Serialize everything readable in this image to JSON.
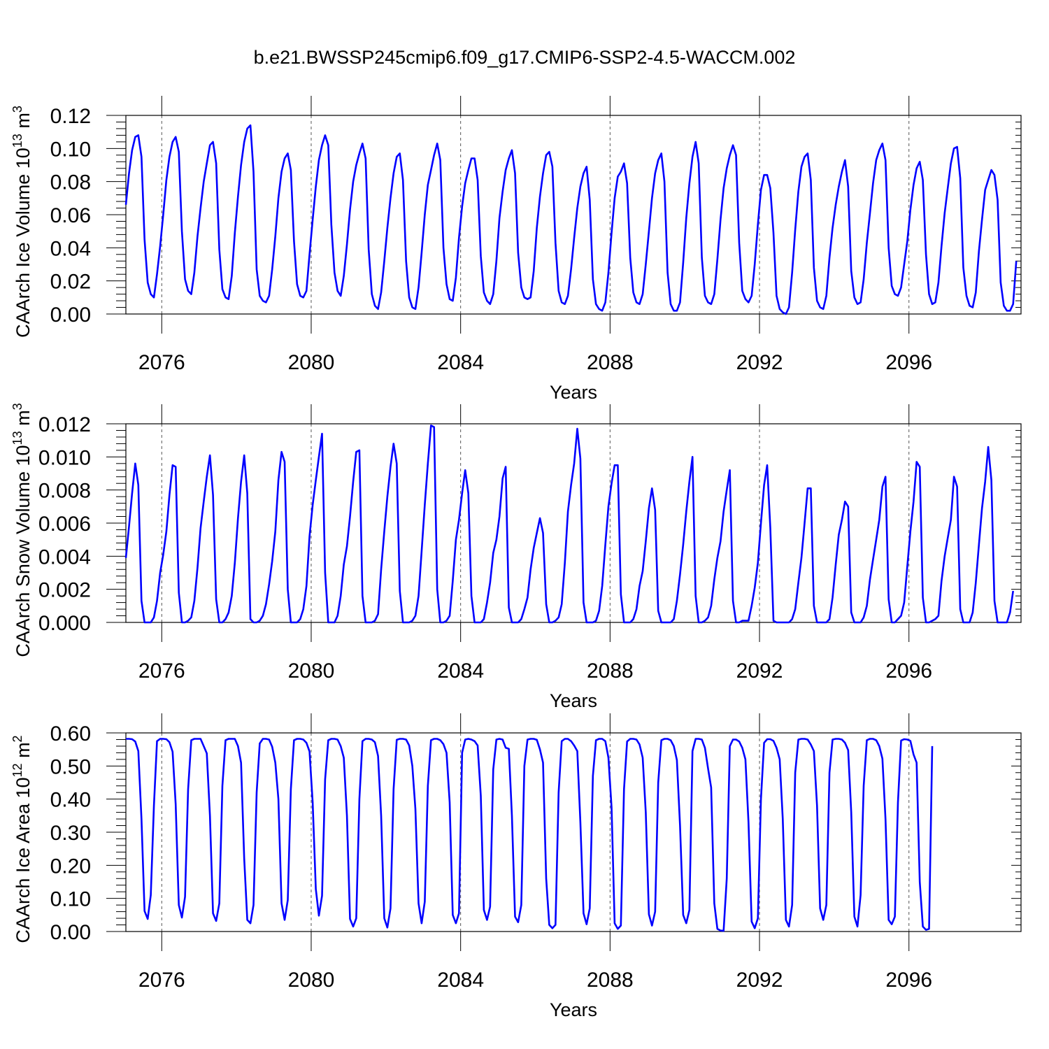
{
  "figure": {
    "title": "b.e21.BWSSP245cmip6.f09_g17.CMIP6-SSP2-4.5-WACCM.002",
    "series_color": "#0000ff"
  },
  "chart_data": [
    {
      "type": "line",
      "ylabel": "CAArch Ice Volume 10",
      "ylabel_exp": "13",
      "ylabel_unit": " m",
      "ylabel_unit_exp": "3",
      "xlabel": "Years",
      "xlim": [
        2075.04,
        2099.0
      ],
      "ylim": [
        0,
        0.12
      ],
      "x_ticks": [
        2076,
        2080,
        2084,
        2088,
        2092,
        2096
      ],
      "x_tick_labels": [
        "2076",
        "2080",
        "2084",
        "2088",
        "2092",
        "2096"
      ],
      "y_ticks": [
        0,
        0.02,
        0.04,
        0.06,
        0.08,
        0.1,
        0.12
      ],
      "y_tick_labels": [
        "0.00",
        "0.02",
        "0.04",
        "0.06",
        "0.08",
        "0.10",
        "0.12"
      ],
      "grid": "vertical dashed at labeled years",
      "x_start": 2075.04,
      "x_step": 0.08333,
      "values": [
        0.066,
        0.085,
        0.099,
        0.107,
        0.108,
        0.095,
        0.045,
        0.019,
        0.012,
        0.01,
        0.024,
        0.041,
        0.06,
        0.081,
        0.095,
        0.104,
        0.107,
        0.098,
        0.05,
        0.021,
        0.014,
        0.012,
        0.025,
        0.047,
        0.064,
        0.08,
        0.091,
        0.102,
        0.104,
        0.091,
        0.039,
        0.015,
        0.01,
        0.009,
        0.023,
        0.049,
        0.071,
        0.09,
        0.104,
        0.112,
        0.114,
        0.086,
        0.027,
        0.011,
        0.008,
        0.007,
        0.011,
        0.027,
        0.047,
        0.07,
        0.086,
        0.094,
        0.097,
        0.087,
        0.044,
        0.018,
        0.011,
        0.01,
        0.014,
        0.036,
        0.057,
        0.077,
        0.093,
        0.102,
        0.108,
        0.102,
        0.054,
        0.025,
        0.014,
        0.011,
        0.023,
        0.042,
        0.063,
        0.08,
        0.09,
        0.097,
        0.103,
        0.094,
        0.039,
        0.012,
        0.005,
        0.003,
        0.013,
        0.032,
        0.052,
        0.07,
        0.085,
        0.095,
        0.097,
        0.081,
        0.032,
        0.01,
        0.004,
        0.003,
        0.016,
        0.037,
        0.06,
        0.078,
        0.087,
        0.096,
        0.103,
        0.093,
        0.04,
        0.018,
        0.009,
        0.008,
        0.022,
        0.046,
        0.065,
        0.079,
        0.087,
        0.094,
        0.094,
        0.081,
        0.035,
        0.013,
        0.008,
        0.006,
        0.012,
        0.032,
        0.058,
        0.074,
        0.087,
        0.094,
        0.099,
        0.085,
        0.037,
        0.016,
        0.01,
        0.009,
        0.01,
        0.026,
        0.052,
        0.071,
        0.085,
        0.096,
        0.098,
        0.089,
        0.043,
        0.014,
        0.007,
        0.006,
        0.011,
        0.027,
        0.046,
        0.064,
        0.077,
        0.085,
        0.089,
        0.069,
        0.021,
        0.006,
        0.003,
        0.002,
        0.007,
        0.025,
        0.049,
        0.07,
        0.083,
        0.086,
        0.091,
        0.079,
        0.034,
        0.013,
        0.007,
        0.006,
        0.012,
        0.03,
        0.05,
        0.07,
        0.085,
        0.093,
        0.097,
        0.08,
        0.025,
        0.006,
        0.002,
        0.002,
        0.007,
        0.031,
        0.058,
        0.079,
        0.095,
        0.104,
        0.091,
        0.034,
        0.011,
        0.007,
        0.006,
        0.012,
        0.033,
        0.057,
        0.076,
        0.088,
        0.096,
        0.102,
        0.096,
        0.043,
        0.014,
        0.009,
        0.007,
        0.011,
        0.03,
        0.054,
        0.075,
        0.084,
        0.084,
        0.076,
        0.049,
        0.011,
        0.003,
        0.001,
        0.0,
        0.004,
        0.025,
        0.051,
        0.074,
        0.089,
        0.095,
        0.097,
        0.081,
        0.028,
        0.008,
        0.004,
        0.003,
        0.011,
        0.034,
        0.052,
        0.066,
        0.077,
        0.086,
        0.093,
        0.077,
        0.026,
        0.01,
        0.006,
        0.007,
        0.021,
        0.043,
        0.061,
        0.079,
        0.093,
        0.099,
        0.103,
        0.093,
        0.04,
        0.017,
        0.012,
        0.011,
        0.016,
        0.03,
        0.044,
        0.063,
        0.078,
        0.088,
        0.092,
        0.081,
        0.036,
        0.012,
        0.006,
        0.007,
        0.019,
        0.041,
        0.061,
        0.076,
        0.091,
        0.1,
        0.101,
        0.082,
        0.028,
        0.011,
        0.005,
        0.004,
        0.013,
        0.038,
        0.057,
        0.075,
        0.081,
        0.087,
        0.084,
        0.069,
        0.019,
        0.005,
        0.002,
        0.002,
        0.006,
        0.032
      ]
    },
    {
      "type": "line",
      "ylabel": "CAArch Snow Volume 10",
      "ylabel_exp": "13",
      "ylabel_unit": " m",
      "ylabel_unit_exp": "3",
      "xlabel": "Years",
      "xlim": [
        2075.04,
        2099.0
      ],
      "ylim": [
        0,
        0.012
      ],
      "x_ticks": [
        2076,
        2080,
        2084,
        2088,
        2092,
        2096
      ],
      "x_tick_labels": [
        "2076",
        "2080",
        "2084",
        "2088",
        "2092",
        "2096"
      ],
      "y_ticks": [
        0,
        0.002,
        0.004,
        0.006,
        0.008,
        0.01,
        0.012
      ],
      "y_tick_labels": [
        "0.000",
        "0.002",
        "0.004",
        "0.006",
        "0.008",
        "0.010",
        "0.012"
      ],
      "grid": "vertical dashed at labeled years",
      "x_start": 2075.04,
      "x_step": 0.08333,
      "values": [
        0.0039,
        0.0058,
        0.0078,
        0.0096,
        0.0083,
        0.0013,
        0.0,
        0.0,
        0.0,
        0.0003,
        0.0013,
        0.003,
        0.0041,
        0.0055,
        0.0077,
        0.0095,
        0.0094,
        0.0018,
        0.0,
        0.0,
        0.0001,
        0.0003,
        0.0013,
        0.0033,
        0.0057,
        0.0073,
        0.0088,
        0.0101,
        0.0077,
        0.0014,
        0.0,
        0.0,
        0.0002,
        0.0006,
        0.0016,
        0.0036,
        0.0063,
        0.0085,
        0.0101,
        0.0078,
        0.0002,
        0.0,
        0.0,
        0.0001,
        0.0004,
        0.0011,
        0.0023,
        0.0037,
        0.0055,
        0.0086,
        0.0103,
        0.0097,
        0.002,
        0.0,
        0.0,
        0.0,
        0.0002,
        0.0008,
        0.0022,
        0.0052,
        0.0071,
        0.0086,
        0.01,
        0.0114,
        0.003,
        0.0,
        0.0,
        0.0,
        0.0004,
        0.0016,
        0.0035,
        0.0046,
        0.0064,
        0.0085,
        0.0103,
        0.0104,
        0.0016,
        0.0,
        0.0,
        0.0,
        0.0001,
        0.0005,
        0.0032,
        0.0055,
        0.0076,
        0.0094,
        0.0108,
        0.0096,
        0.0019,
        0.0,
        0.0,
        0.0,
        0.0001,
        0.0004,
        0.0016,
        0.0043,
        0.0071,
        0.0096,
        0.0119,
        0.0118,
        0.002,
        0.0,
        0.0,
        0.0001,
        0.0004,
        0.0025,
        0.005,
        0.0062,
        0.0078,
        0.0092,
        0.0078,
        0.0016,
        0.0,
        0.0,
        0.0,
        0.0002,
        0.0012,
        0.0024,
        0.0042,
        0.005,
        0.0064,
        0.0087,
        0.0094,
        0.0009,
        0.0,
        0.0,
        0.0,
        0.0002,
        0.0008,
        0.0015,
        0.0032,
        0.0045,
        0.0054,
        0.0063,
        0.0054,
        0.0011,
        0.0,
        0.0,
        0.0001,
        0.0003,
        0.0011,
        0.0036,
        0.0067,
        0.0083,
        0.0096,
        0.0117,
        0.0099,
        0.0012,
        0.0,
        0.0,
        0.0,
        0.0001,
        0.0007,
        0.0022,
        0.0047,
        0.007,
        0.0084,
        0.0095,
        0.0095,
        0.0017,
        0.0,
        0.0,
        0.0,
        0.0002,
        0.0008,
        0.0022,
        0.0031,
        0.0049,
        0.0069,
        0.0081,
        0.0068,
        0.0007,
        0.0,
        0.0,
        0.0,
        0.0,
        0.0002,
        0.0013,
        0.0029,
        0.0047,
        0.0067,
        0.0085,
        0.01,
        0.0016,
        0.0,
        0.0,
        0.0001,
        0.0003,
        0.001,
        0.0026,
        0.0039,
        0.0049,
        0.0067,
        0.008,
        0.0092,
        0.0013,
        0.0,
        0.0,
        0.0001,
        0.0001,
        0.0001,
        0.001,
        0.0021,
        0.0036,
        0.006,
        0.0083,
        0.0095,
        0.0057,
        0.0001,
        0.0,
        0.0,
        0.0,
        0.0,
        0.0,
        0.0002,
        0.0008,
        0.0024,
        0.0039,
        0.006,
        0.0081,
        0.0081,
        0.001,
        0.0,
        0.0,
        0.0,
        0.0,
        0.0002,
        0.0015,
        0.0035,
        0.0053,
        0.0062,
        0.0073,
        0.007,
        0.0006,
        0.0,
        0.0,
        0.0,
        0.0003,
        0.001,
        0.0026,
        0.0038,
        0.005,
        0.0062,
        0.0082,
        0.0088,
        0.0014,
        0.0,
        0.0,
        0.0002,
        0.0004,
        0.0012,
        0.0034,
        0.0055,
        0.0073,
        0.0097,
        0.0094,
        0.0015,
        0.0,
        0.0,
        0.0001,
        0.0002,
        0.0004,
        0.0025,
        0.004,
        0.0051,
        0.0062,
        0.0088,
        0.0082,
        0.0008,
        0.0,
        0.0,
        0.0,
        0.0006,
        0.0024,
        0.0047,
        0.0069,
        0.0085,
        0.0106,
        0.0086,
        0.0013,
        0.0,
        0.0,
        0.0,
        0.0,
        0.0006,
        0.0019
      ]
    },
    {
      "type": "line",
      "ylabel": "CAArch Ice Area 10",
      "ylabel_exp": "12",
      "ylabel_unit": " m",
      "ylabel_unit_exp": "2",
      "xlabel": "Years",
      "xlim": [
        2075.04,
        2099.0
      ],
      "ylim": [
        0,
        0.6
      ],
      "x_ticks": [
        2076,
        2080,
        2084,
        2088,
        2092,
        2096
      ],
      "x_tick_labels": [
        "2076",
        "2080",
        "2084",
        "2088",
        "2092",
        "2096"
      ],
      "y_ticks": [
        0,
        0.1,
        0.2,
        0.3,
        0.4,
        0.5,
        0.6
      ],
      "y_tick_labels": [
        "0.00",
        "0.10",
        "0.20",
        "0.30",
        "0.40",
        "0.50",
        "0.60"
      ],
      "grid": "vertical dashed at labeled years",
      "x_start": 2075.04,
      "x_step": 0.08333,
      "values": [
        0.582,
        0.582,
        0.581,
        0.574,
        0.545,
        0.34,
        0.062,
        0.038,
        0.11,
        0.38,
        0.575,
        0.582,
        0.582,
        0.581,
        0.572,
        0.543,
        0.385,
        0.08,
        0.042,
        0.105,
        0.43,
        0.578,
        0.582,
        0.582,
        0.582,
        0.56,
        0.538,
        0.35,
        0.055,
        0.032,
        0.085,
        0.44,
        0.578,
        0.582,
        0.582,
        0.582,
        0.56,
        0.51,
        0.22,
        0.035,
        0.025,
        0.08,
        0.42,
        0.568,
        0.582,
        0.582,
        0.58,
        0.558,
        0.51,
        0.4,
        0.085,
        0.035,
        0.095,
        0.43,
        0.578,
        0.582,
        0.582,
        0.58,
        0.57,
        0.544,
        0.39,
        0.128,
        0.048,
        0.108,
        0.46,
        0.578,
        0.582,
        0.582,
        0.58,
        0.56,
        0.525,
        0.35,
        0.038,
        0.015,
        0.04,
        0.4,
        0.575,
        0.582,
        0.582,
        0.58,
        0.572,
        0.53,
        0.35,
        0.04,
        0.012,
        0.07,
        0.43,
        0.579,
        0.582,
        0.582,
        0.58,
        0.562,
        0.5,
        0.37,
        0.085,
        0.025,
        0.09,
        0.44,
        0.578,
        0.582,
        0.582,
        0.578,
        0.566,
        0.54,
        0.39,
        0.05,
        0.025,
        0.055,
        0.54,
        0.58,
        0.582,
        0.58,
        0.575,
        0.562,
        0.41,
        0.065,
        0.035,
        0.075,
        0.49,
        0.58,
        0.582,
        0.58,
        0.555,
        0.552,
        0.35,
        0.045,
        0.028,
        0.08,
        0.5,
        0.58,
        0.582,
        0.582,
        0.579,
        0.55,
        0.51,
        0.16,
        0.02,
        0.01,
        0.02,
        0.42,
        0.575,
        0.582,
        0.582,
        0.575,
        0.562,
        0.545,
        0.33,
        0.055,
        0.022,
        0.07,
        0.47,
        0.578,
        0.582,
        0.582,
        0.575,
        0.525,
        0.375,
        0.025,
        0.008,
        0.018,
        0.43,
        0.574,
        0.582,
        0.582,
        0.58,
        0.565,
        0.525,
        0.36,
        0.052,
        0.018,
        0.06,
        0.45,
        0.578,
        0.582,
        0.582,
        0.578,
        0.56,
        0.518,
        0.32,
        0.05,
        0.025,
        0.065,
        0.545,
        0.582,
        0.582,
        0.58,
        0.555,
        0.492,
        0.435,
        0.085,
        0.008,
        0.003,
        0.002,
        0.16,
        0.56,
        0.58,
        0.58,
        0.574,
        0.555,
        0.52,
        0.33,
        0.03,
        0.01,
        0.04,
        0.4,
        0.57,
        0.581,
        0.581,
        0.576,
        0.555,
        0.52,
        0.34,
        0.035,
        0.015,
        0.08,
        0.48,
        0.58,
        0.582,
        0.582,
        0.58,
        0.565,
        0.545,
        0.38,
        0.07,
        0.035,
        0.08,
        0.48,
        0.58,
        0.582,
        0.582,
        0.58,
        0.57,
        0.548,
        0.36,
        0.045,
        0.015,
        0.11,
        0.44,
        0.578,
        0.582,
        0.582,
        0.578,
        0.56,
        0.522,
        0.34,
        0.035,
        0.022,
        0.045,
        0.39,
        0.577,
        0.581,
        0.58,
        0.576,
        0.535,
        0.51,
        0.15,
        0.015,
        0.005,
        0.008,
        0.56
      ]
    }
  ]
}
